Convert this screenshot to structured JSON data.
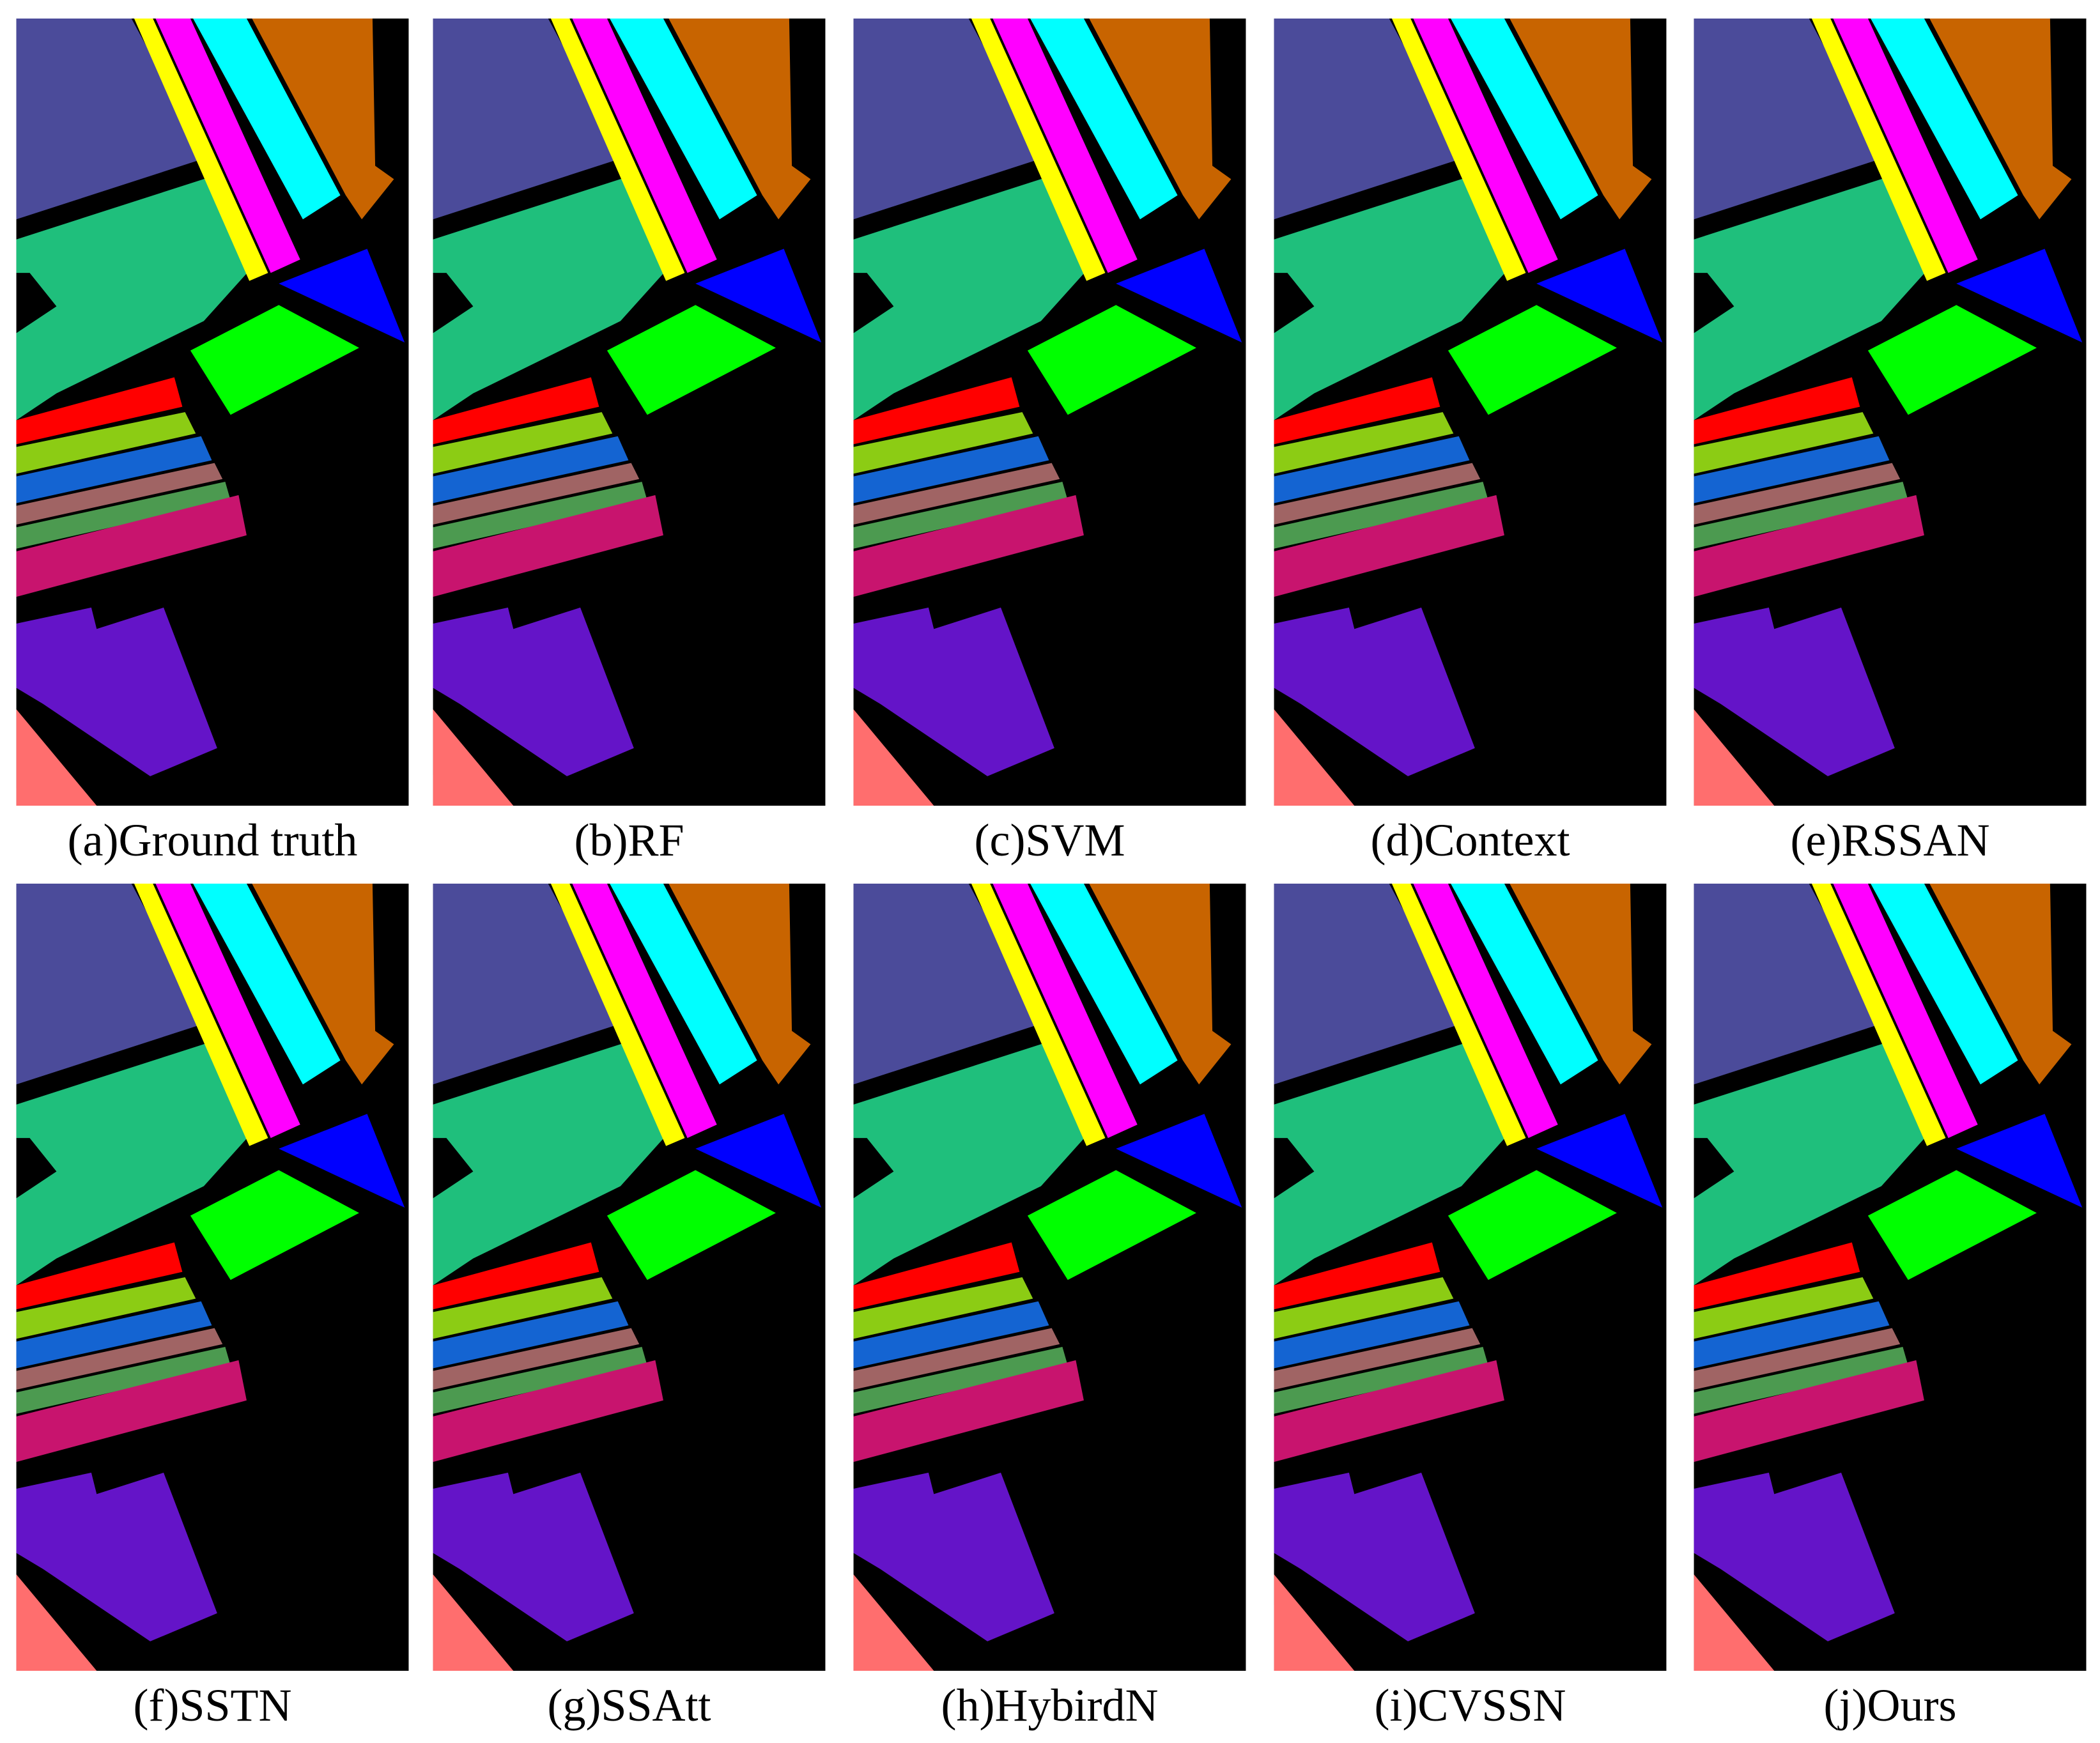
{
  "figure": {
    "captions": [
      "(a)Ground truth",
      "(b)RF",
      "(c)SVM",
      "(d)Context",
      "(e)RSSAN",
      "(f)SSTN",
      "(g)SSAtt",
      "(h)HybirdN",
      "(i)CVSSN",
      "(j)Ours"
    ]
  }
}
